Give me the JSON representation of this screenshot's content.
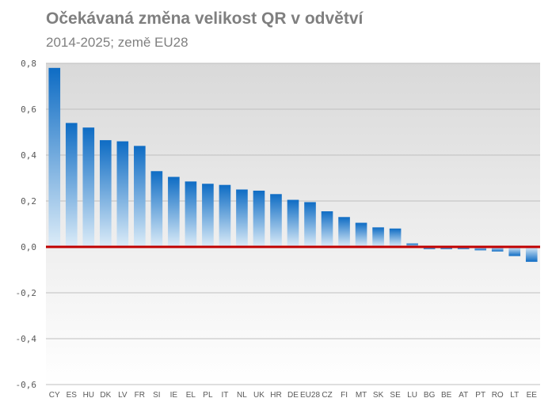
{
  "chart_data": {
    "type": "bar",
    "title": "Očekávaná změna velikost QR v odvětví",
    "subtitle": "2014-2025; země EU28",
    "categories": [
      "CY",
      "ES",
      "HU",
      "DK",
      "LV",
      "FR",
      "SI",
      "IE",
      "EL",
      "PL",
      "IT",
      "NL",
      "UK",
      "HR",
      "DE",
      "EU28",
      "CZ",
      "FI",
      "MT",
      "SK",
      "SE",
      "LU",
      "BG",
      "BE",
      "AT",
      "PT",
      "RO",
      "LT",
      "EE"
    ],
    "values": [
      0.78,
      0.54,
      0.52,
      0.465,
      0.46,
      0.44,
      0.33,
      0.305,
      0.285,
      0.275,
      0.27,
      0.25,
      0.245,
      0.23,
      0.205,
      0.195,
      0.155,
      0.13,
      0.105,
      0.085,
      0.08,
      0.015,
      -0.01,
      -0.01,
      -0.01,
      -0.015,
      -0.02,
      -0.04,
      -0.065
    ],
    "ylim": [
      -0.6,
      0.8
    ],
    "yticks": [
      "-0,6",
      "-0,4",
      "-0,2",
      "0,0",
      "0,2",
      "0,4",
      "0,6",
      "0,8"
    ],
    "grid": true,
    "colors": {
      "bar_top": "#0e6cc4",
      "bar_bottom": "#dcecf8",
      "zero_line": "#c00000",
      "gridline": "#bfbfbf",
      "plot_bg_top": "#d9d9d9",
      "plot_bg_bottom": "#ffffff"
    }
  }
}
